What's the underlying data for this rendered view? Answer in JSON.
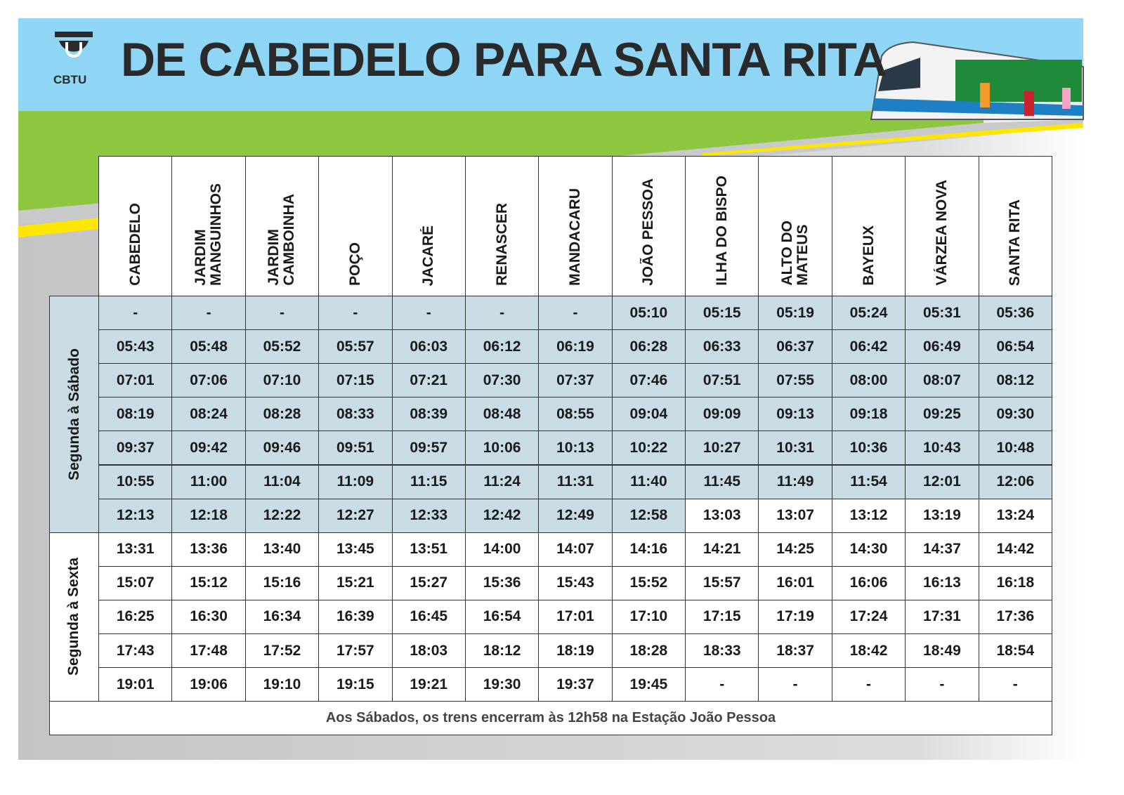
{
  "header": {
    "logo": "CBTU",
    "title": "DE CABEDELO PARA SANTA RITA"
  },
  "table": {
    "stations": [
      [
        "CABEDELO"
      ],
      [
        "JARDIM",
        "MANGUINHOS"
      ],
      [
        "JARDIM",
        "CAMBOINHA"
      ],
      [
        "POÇO"
      ],
      [
        "JACARÉ"
      ],
      [
        "RENASCER"
      ],
      [
        "MANDACARU"
      ],
      [
        "JOÃO PESSOA"
      ],
      [
        "ILHA DO BISPO"
      ],
      [
        "ALTO DO",
        "MATEUS"
      ],
      [
        "BAYEUX"
      ],
      [
        "VÁRZEA NOVA"
      ],
      [
        "SANTA RITA"
      ]
    ],
    "groups": [
      {
        "label": "Segunda à Sábado",
        "rows": [
          [
            "-",
            "-",
            "-",
            "-",
            "-",
            "-",
            "-",
            "05:10",
            "05:15",
            "05:19",
            "05:24",
            "05:31",
            "05:36"
          ],
          [
            "05:43",
            "05:48",
            "05:52",
            "05:57",
            "06:03",
            "06:12",
            "06:19",
            "06:28",
            "06:33",
            "06:37",
            "06:42",
            "06:49",
            "06:54"
          ],
          [
            "07:01",
            "07:06",
            "07:10",
            "07:15",
            "07:21",
            "07:30",
            "07:37",
            "07:46",
            "07:51",
            "07:55",
            "08:00",
            "08:07",
            "08:12"
          ],
          [
            "08:19",
            "08:24",
            "08:28",
            "08:33",
            "08:39",
            "08:48",
            "08:55",
            "09:04",
            "09:09",
            "09:13",
            "09:18",
            "09:25",
            "09:30"
          ],
          [
            "09:37",
            "09:42",
            "09:46",
            "09:51",
            "09:57",
            "10:06",
            "10:13",
            "10:22",
            "10:27",
            "10:31",
            "10:36",
            "10:43",
            "10:48"
          ],
          [
            "10:55",
            "11:00",
            "11:04",
            "11:09",
            "11:15",
            "11:24",
            "11:31",
            "11:40",
            "11:45",
            "11:49",
            "11:54",
            "12:01",
            "12:06"
          ],
          [
            "12:13",
            "12:18",
            "12:22",
            "12:27",
            "12:33",
            "12:42",
            "12:49",
            "12:58",
            "13:03",
            "13:07",
            "13:12",
            "13:19",
            "13:24"
          ]
        ]
      },
      {
        "label": "Segunda à Sexta",
        "rows": [
          [
            "13:31",
            "13:36",
            "13:40",
            "13:45",
            "13:51",
            "14:00",
            "14:07",
            "14:16",
            "14:21",
            "14:25",
            "14:30",
            "14:37",
            "14:42"
          ],
          [
            "15:07",
            "15:12",
            "15:16",
            "15:21",
            "15:27",
            "15:36",
            "15:43",
            "15:52",
            "15:57",
            "16:01",
            "16:06",
            "16:13",
            "16:18"
          ],
          [
            "16:25",
            "16:30",
            "16:34",
            "16:39",
            "16:45",
            "16:54",
            "17:01",
            "17:10",
            "17:15",
            "17:19",
            "17:24",
            "17:31",
            "17:36"
          ],
          [
            "17:43",
            "17:48",
            "17:52",
            "17:57",
            "18:03",
            "18:12",
            "18:19",
            "18:28",
            "18:33",
            "18:37",
            "18:42",
            "18:49",
            "18:54"
          ],
          [
            "19:01",
            "19:06",
            "19:10",
            "19:15",
            "19:21",
            "19:30",
            "19:37",
            "19:45",
            "-",
            "-",
            "-",
            "-",
            "-"
          ]
        ]
      }
    ]
  },
  "footer": {
    "note": "Aos Sábados, os trens encerram às 12h58 na Estação João Pessoa"
  }
}
